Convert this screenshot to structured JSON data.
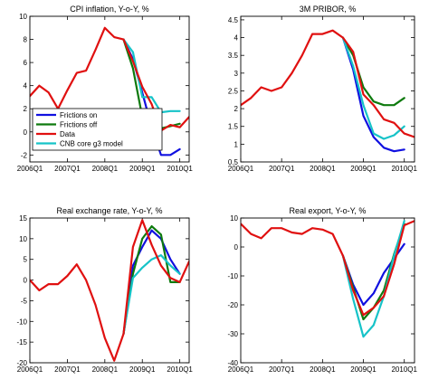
{
  "colors": {
    "frictions_on": "#1010e0",
    "frictions_off": "#0e7a0e",
    "data": "#e01010",
    "core_g3": "#16c3c8"
  },
  "chart_data": [
    {
      "type": "line",
      "title": "CPI inflation, Y-o-Y, %",
      "xlabel": "",
      "ylabel": "",
      "xlim": [
        2006.0,
        2010.25
      ],
      "ylim": [
        -2.6,
        10
      ],
      "xticks": [
        2006.0,
        2007.0,
        2008.0,
        2009.0,
        2010.0
      ],
      "xtick_labels": [
        "2006Q1",
        "2007Q1",
        "2008Q1",
        "2009Q1",
        "2010Q1"
      ],
      "yticks": [
        -2,
        0,
        2,
        4,
        6,
        8,
        10
      ],
      "ytick_labels": [
        "-2",
        "0",
        "2",
        "4",
        "6",
        "8",
        "10"
      ],
      "legend": {
        "position": "bottom-left",
        "entries": [
          "Frictions on",
          "Frictions off",
          "Data",
          "CNB core g3 model"
        ]
      },
      "series": [
        {
          "name": "Data",
          "color_key": "data",
          "x": [
            2006.0,
            2006.25,
            2006.5,
            2006.75,
            2007.0,
            2007.25,
            2007.5,
            2007.75,
            2008.0,
            2008.25,
            2008.5,
            2008.75,
            2009.0,
            2009.25,
            2009.5,
            2009.75,
            2010.0,
            2010.25
          ],
          "y": [
            3.1,
            4.0,
            3.4,
            2.0,
            3.6,
            5.1,
            5.3,
            7.1,
            9.0,
            8.2,
            8.0,
            6.1,
            3.9,
            2.4,
            0.1,
            0.6,
            0.4,
            1.3
          ]
        },
        {
          "name": "Frictions on",
          "color_key": "frictions_on",
          "x": [
            2008.5,
            2008.75,
            2009.0,
            2009.25,
            2009.5,
            2009.75,
            2010.0
          ],
          "y": [
            8.0,
            6.3,
            3.4,
            0.4,
            -2.0,
            -2.0,
            -1.5
          ]
        },
        {
          "name": "Frictions off",
          "color_key": "frictions_off",
          "x": [
            2008.5,
            2008.75,
            2009.0,
            2009.25,
            2009.5,
            2009.75,
            2010.0
          ],
          "y": [
            8.0,
            5.5,
            1.3,
            0.7,
            0.3,
            0.5,
            0.7
          ]
        },
        {
          "name": "CNB core g3 model",
          "color_key": "core_g3",
          "x": [
            2008.5,
            2008.75,
            2009.0,
            2009.25,
            2009.5,
            2009.75,
            2010.0
          ],
          "y": [
            8.0,
            6.9,
            3.0,
            3.0,
            1.7,
            1.8,
            1.8
          ]
        }
      ]
    },
    {
      "type": "line",
      "title": "3M PRIBOR, %",
      "xlabel": "",
      "ylabel": "",
      "xlim": [
        2006.0,
        2010.25
      ],
      "ylim": [
        0.5,
        4.6
      ],
      "xticks": [
        2006.0,
        2007.0,
        2008.0,
        2009.0,
        2010.0
      ],
      "xtick_labels": [
        "2006Q1",
        "2007Q1",
        "2008Q1",
        "2009Q1",
        "2010Q1"
      ],
      "yticks": [
        0.5,
        1,
        1.5,
        2,
        2.5,
        3,
        3.5,
        4,
        4.5
      ],
      "ytick_labels": [
        "0.5",
        "1",
        "1.5",
        "2",
        "2.5",
        "3",
        "3.5",
        "4",
        "4.5"
      ],
      "series": [
        {
          "name": "Data",
          "color_key": "data",
          "x": [
            2006.0,
            2006.25,
            2006.5,
            2006.75,
            2007.0,
            2007.25,
            2007.5,
            2007.75,
            2008.0,
            2008.25,
            2008.5,
            2008.75,
            2009.0,
            2009.25,
            2009.5,
            2009.75,
            2010.0,
            2010.25
          ],
          "y": [
            2.1,
            2.3,
            2.6,
            2.5,
            2.6,
            3.0,
            3.5,
            4.1,
            4.1,
            4.2,
            4.0,
            3.6,
            2.4,
            2.1,
            1.7,
            1.6,
            1.3,
            1.2
          ]
        },
        {
          "name": "Frictions on",
          "color_key": "frictions_on",
          "x": [
            2008.5,
            2008.75,
            2009.0,
            2009.25,
            2009.5,
            2009.75,
            2010.0
          ],
          "y": [
            4.0,
            3.1,
            1.8,
            1.2,
            0.9,
            0.8,
            0.85
          ]
        },
        {
          "name": "Frictions off",
          "color_key": "frictions_off",
          "x": [
            2008.5,
            2008.75,
            2009.0,
            2009.25,
            2009.5,
            2009.75,
            2010.0
          ],
          "y": [
            4.0,
            3.5,
            2.6,
            2.2,
            2.1,
            2.1,
            2.3
          ]
        },
        {
          "name": "CNB core g3 model",
          "color_key": "core_g3",
          "x": [
            2008.5,
            2008.75,
            2009.0,
            2009.25,
            2009.5,
            2009.75,
            2010.0
          ],
          "y": [
            4.0,
            3.2,
            2.1,
            1.3,
            1.15,
            1.25,
            1.5
          ]
        }
      ]
    },
    {
      "type": "line",
      "title": "Real exchange rate, Y-o-Y, %",
      "xlabel": "",
      "ylabel": "",
      "xlim": [
        2006.0,
        2010.25
      ],
      "ylim": [
        -20,
        15
      ],
      "xticks": [
        2006.0,
        2007.0,
        2008.0,
        2009.0,
        2010.0
      ],
      "xtick_labels": [
        "2006Q1",
        "2007Q1",
        "2008Q1",
        "2009Q1",
        "2010Q1"
      ],
      "yticks": [
        -20,
        -15,
        -10,
        -5,
        0,
        5,
        10,
        15
      ],
      "ytick_labels": [
        "-20",
        "-15",
        "-10",
        "-5",
        "0",
        "5",
        "10",
        "15"
      ],
      "series": [
        {
          "name": "Data",
          "color_key": "data",
          "x": [
            2006.0,
            2006.25,
            2006.5,
            2006.75,
            2007.0,
            2007.25,
            2007.5,
            2007.75,
            2008.0,
            2008.25,
            2008.5,
            2008.75,
            2009.0,
            2009.25,
            2009.5,
            2009.75,
            2010.0,
            2010.25
          ],
          "y": [
            0.0,
            -2.5,
            -1.0,
            -1.0,
            1.0,
            3.8,
            0.0,
            -6.0,
            -14.0,
            -19.5,
            -13.0,
            8.0,
            14.5,
            8.5,
            3.5,
            0.5,
            -0.5,
            4.5
          ]
        },
        {
          "name": "Frictions on",
          "color_key": "frictions_on",
          "x": [
            2008.5,
            2008.75,
            2009.0,
            2009.25,
            2009.5,
            2009.75,
            2010.0
          ],
          "y": [
            -13.0,
            3.5,
            8.0,
            12.0,
            10.0,
            5.0,
            1.5
          ]
        },
        {
          "name": "Frictions off",
          "color_key": "frictions_off",
          "x": [
            2008.5,
            2008.75,
            2009.0,
            2009.25,
            2009.5,
            2009.75,
            2010.0
          ],
          "y": [
            -13.0,
            1.5,
            10.0,
            13.0,
            11.0,
            -0.5,
            -0.5
          ]
        },
        {
          "name": "CNB core g3 model",
          "color_key": "core_g3",
          "x": [
            2008.5,
            2008.75,
            2009.0,
            2009.25,
            2009.5,
            2009.75,
            2010.0
          ],
          "y": [
            -13.0,
            0.5,
            3.0,
            5.0,
            6.0,
            3.5,
            1.5
          ]
        }
      ]
    },
    {
      "type": "line",
      "title": "Real export, Y-o-Y, %",
      "xlabel": "",
      "ylabel": "",
      "xlim": [
        2006.0,
        2010.25
      ],
      "ylim": [
        -40,
        10
      ],
      "xticks": [
        2006.0,
        2007.0,
        2008.0,
        2009.0,
        2010.0
      ],
      "xtick_labels": [
        "2006Q1",
        "2007Q1",
        "2008Q1",
        "2009Q1",
        "2010Q1"
      ],
      "yticks": [
        -40,
        -30,
        -20,
        -10,
        0,
        10
      ],
      "ytick_labels": [
        "-40",
        "-30",
        "-20",
        "-10",
        "0",
        "10"
      ],
      "series": [
        {
          "name": "Data",
          "color_key": "data",
          "x": [
            2006.0,
            2006.25,
            2006.5,
            2006.75,
            2007.0,
            2007.25,
            2007.5,
            2007.75,
            2008.0,
            2008.25,
            2008.5,
            2008.75,
            2009.0,
            2009.25,
            2009.5,
            2009.75,
            2010.0,
            2010.25
          ],
          "y": [
            8.0,
            4.5,
            3.0,
            6.5,
            6.5,
            5.0,
            4.5,
            6.5,
            6.0,
            4.5,
            -3.0,
            -15.0,
            -23.5,
            -21.0,
            -17.0,
            -6.0,
            7.5,
            9.0
          ]
        },
        {
          "name": "Frictions on",
          "color_key": "frictions_on",
          "x": [
            2008.5,
            2008.75,
            2009.0,
            2009.25,
            2009.5,
            2009.75,
            2010.0
          ],
          "y": [
            -3.0,
            -13.0,
            -20.0,
            -16.0,
            -9.0,
            -4.0,
            1.0
          ]
        },
        {
          "name": "Frictions off",
          "color_key": "frictions_off",
          "x": [
            2008.5,
            2008.75,
            2009.0,
            2009.25,
            2009.5,
            2009.75,
            2010.0
          ],
          "y": [
            -3.0,
            -14.0,
            -25.0,
            -21.0,
            -15.0,
            -2.5,
            8.0
          ]
        },
        {
          "name": "CNB core g3 model",
          "color_key": "core_g3",
          "x": [
            2008.5,
            2008.75,
            2009.0,
            2009.25,
            2009.5,
            2009.75,
            2010.0
          ],
          "y": [
            -3.0,
            -18.0,
            -31.0,
            -27.0,
            -17.0,
            -3.0,
            9.0
          ]
        }
      ]
    }
  ]
}
